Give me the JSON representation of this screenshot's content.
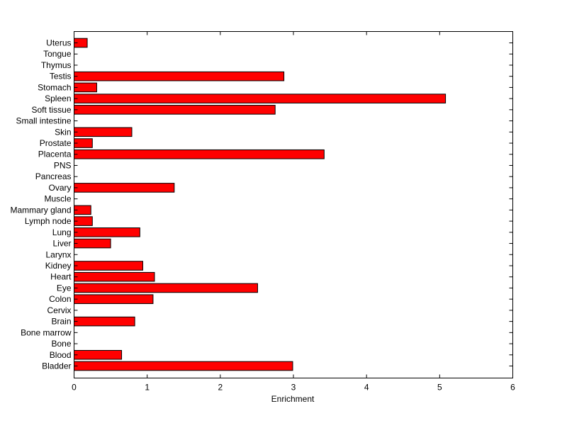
{
  "chart_data": {
    "type": "bar",
    "orientation": "horizontal",
    "title": "",
    "xlabel": "Enrichment",
    "ylabel": "",
    "xlim": [
      0,
      6
    ],
    "xticks": [
      "0",
      "1",
      "2",
      "3",
      "4",
      "5",
      "6"
    ],
    "grid": false,
    "bar_color": "#ff0000",
    "edge_color": "#000000",
    "categories": [
      "Bladder",
      "Blood",
      "Bone",
      "Bone marrow",
      "Brain",
      "Cervix",
      "Colon",
      "Eye",
      "Heart",
      "Kidney",
      "Larynx",
      "Liver",
      "Lung",
      "Lymph node",
      "Mammary gland",
      "Muscle",
      "Ovary",
      "Pancreas",
      "PNS",
      "Placenta",
      "Prostate",
      "Skin",
      "Small intestine",
      "Soft tissue",
      "Spleen",
      "Stomach",
      "Testis",
      "Thymus",
      "Tongue",
      "Uterus"
    ],
    "values": [
      2.99,
      0.65,
      0,
      0,
      0.83,
      0,
      1.08,
      2.51,
      1.1,
      0.94,
      0,
      0.5,
      0.9,
      0.25,
      0.23,
      0,
      1.37,
      0,
      0,
      3.42,
      0.25,
      0.79,
      0,
      2.75,
      5.08,
      0.31,
      2.87,
      0,
      0,
      0.18
    ]
  }
}
